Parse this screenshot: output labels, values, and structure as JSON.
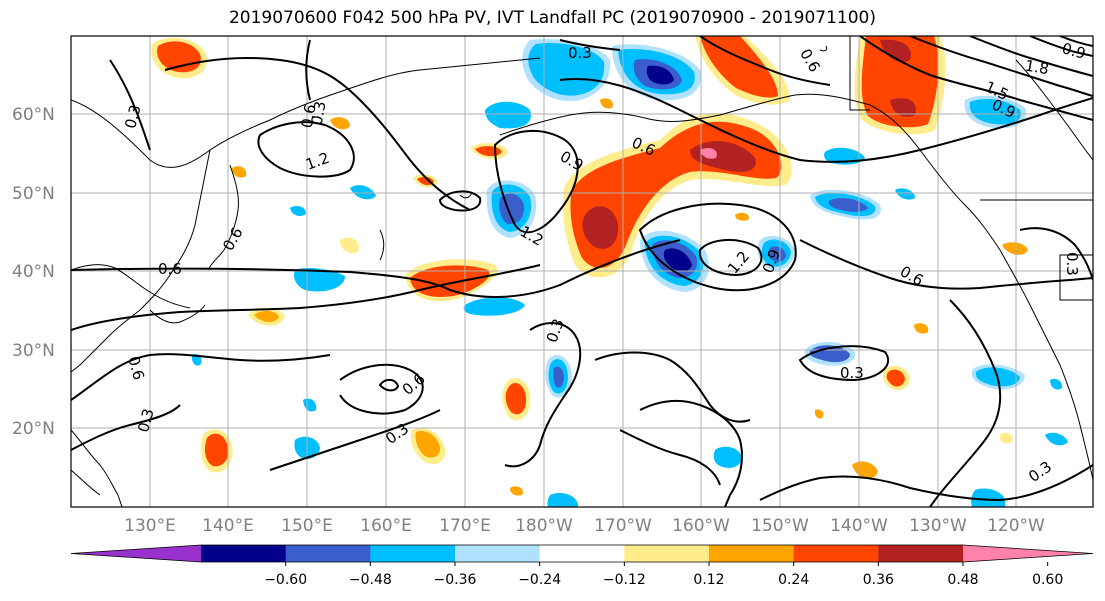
{
  "title": "2019070600 F042 500 hPa PV, IVT Landfall PC (2019070900 - 2019071100)",
  "lon_labels": [
    "130°E",
    "140°E",
    "150°E",
    "160°E",
    "170°E",
    "180°W",
    "170°W",
    "160°W",
    "150°W",
    "140°W",
    "130°W",
    "120°W"
  ],
  "lat_labels": [
    "60°N",
    "50°N",
    "40°N",
    "30°N",
    "20°N"
  ],
  "contour_labels": [
    "0.3",
    "0.3",
    "0.6",
    "0.6",
    "0.9",
    "1.2",
    "1.2",
    "0.6",
    "0.6",
    "1.2",
    "0.9",
    "0.6",
    "0.6",
    "0.3",
    "0.6",
    "0.3",
    "0.3",
    "0.3",
    "0.3",
    "0.3",
    "1.8",
    "1.5",
    "0.9",
    "0.6",
    "0.9",
    "0.3"
  ],
  "colorbar": {
    "ticks": [
      "−0.60",
      "−0.48",
      "−0.36",
      "−0.24",
      "−0.12",
      "0.12",
      "0.24",
      "0.36",
      "0.48",
      "0.60"
    ],
    "colors": [
      "#9932cc",
      "#00008b",
      "#3a5fcd",
      "#00bfff",
      "#b0e2ff",
      "#ffffff",
      "#ffec8b",
      "#ffa500",
      "#ff4500",
      "#b22222",
      "#ff82ab"
    ]
  },
  "colors": {
    "negative_shading": "#00bfff",
    "positive_shading": "#ff4500",
    "contour": "#000000",
    "coast": "#000000",
    "grid": "#b0b0b0"
  }
}
